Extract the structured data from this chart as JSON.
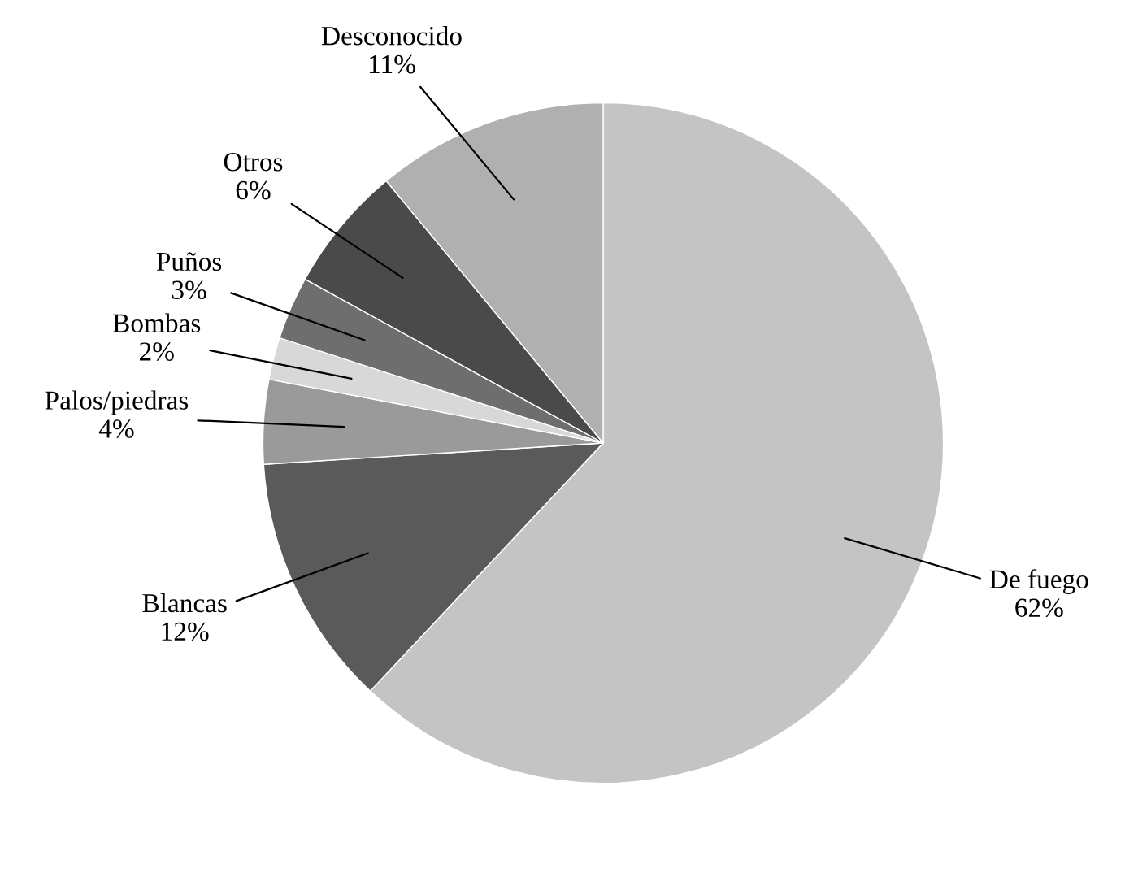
{
  "chart_data": {
    "type": "pie",
    "categories": [
      "De fuego",
      "Blancas",
      "Palos/piedras",
      "Bombas",
      "Puños",
      "Otros",
      "Desconocido"
    ],
    "values": [
      62,
      12,
      4,
      2,
      3,
      6,
      11
    ],
    "colors": [
      "#c4c4c4",
      "#5a5a5a",
      "#9a9a9a",
      "#d8d8d8",
      "#6e6e6e",
      "#4a4a4a",
      "#b0b0b0"
    ],
    "value_labels": [
      "62%",
      "12%",
      "4%",
      "2%",
      "3%",
      "6%",
      "11%"
    ]
  }
}
